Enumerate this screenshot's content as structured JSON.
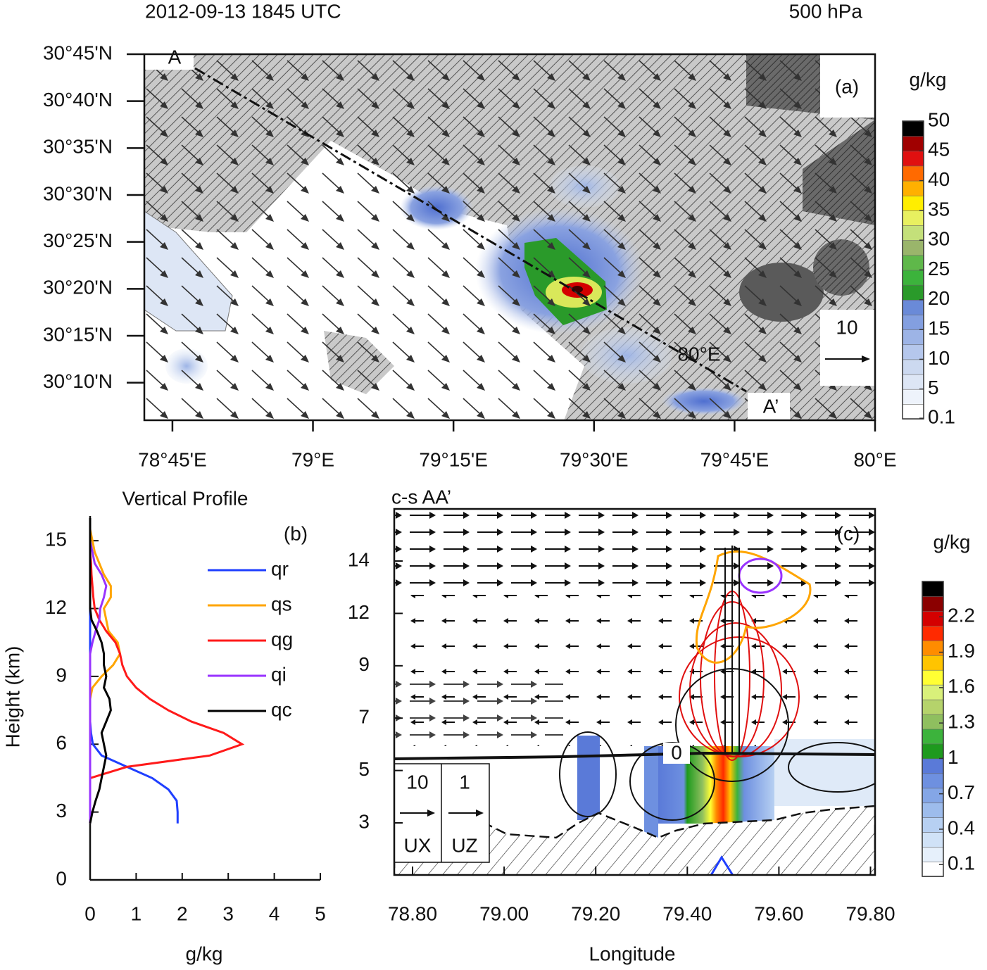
{
  "chart_data": [
    {
      "type": "map",
      "title": "2012-09-13 1845 UTC",
      "subtitle": "500 hPa",
      "panel_label": "(a)",
      "xlim": [
        78.7,
        80
      ],
      "xticks": [
        {
          "value": 78.75,
          "label": "78°45'E"
        },
        {
          "value": 79,
          "label": "79°E"
        },
        {
          "value": 79.25,
          "label": "79°15'E"
        },
        {
          "value": 79.5,
          "label": "79°30'E"
        },
        {
          "value": 79.75,
          "label": "79°45'E"
        },
        {
          "value": 80,
          "label": "80°E"
        }
      ],
      "ylim": [
        30.1,
        30.75
      ],
      "yticks": [
        {
          "value": 30.16667,
          "label": "30°10'N"
        },
        {
          "value": 30.25,
          "label": "30°15'N"
        },
        {
          "value": 30.33333,
          "label": "30°20'N"
        },
        {
          "value": 30.41667,
          "label": "30°25'N"
        },
        {
          "value": 30.5,
          "label": "30°30'N"
        },
        {
          "value": 30.58333,
          "label": "30°35'N"
        },
        {
          "value": 30.66667,
          "label": "30°40'N"
        },
        {
          "value": 30.75,
          "label": "30°45'N"
        }
      ],
      "annotations": [
        "A",
        "A’",
        "80°E"
      ],
      "reference_vector": 10,
      "colorbar": {
        "label": "g/kg",
        "lim": [
          0,
          50
        ],
        "ticks": [
          0.1,
          5,
          10,
          15,
          20,
          25,
          30,
          35,
          40,
          45,
          50
        ],
        "colors": [
          "#ffffff",
          "#eef3fb",
          "#dde6f5",
          "#ccd9f0",
          "#b5c7ec",
          "#9db4e6",
          "#839fe0",
          "#6a8ad8",
          "#2a9a2a",
          "#3cb33c",
          "#5fb84a",
          "#9ab56b",
          "#c4e07a",
          "#e8f060",
          "#ffee00",
          "#ffb000",
          "#ff6a00",
          "#e01010",
          "#a00000",
          "#000000"
        ]
      }
    },
    {
      "type": "line",
      "title": "Vertical Profile",
      "panel_label": "(b)",
      "x_label": "g/kg",
      "y_label": "Height (km)",
      "xlim": [
        0,
        5
      ],
      "xticks": [
        0,
        1,
        2,
        3,
        4,
        5
      ],
      "ylim": [
        0,
        16
      ],
      "yticks": [
        0,
        3,
        6,
        9,
        12,
        15
      ],
      "y": [
        2.5,
        3,
        3.5,
        4,
        4.5,
        5,
        5.5,
        6,
        6.5,
        7,
        7.5,
        8,
        8.5,
        9,
        9.5,
        10,
        10.5,
        11,
        11.5,
        12,
        12.5,
        13,
        13.5,
        14,
        14.5,
        15,
        15.5,
        16
      ],
      "series": [
        {
          "name": "qr",
          "color": "#1f3fff",
          "values": [
            1.9,
            1.9,
            1.88,
            1.7,
            1.35,
            0.8,
            0.25,
            0.06,
            0.02,
            0,
            0,
            0,
            0,
            0,
            0,
            0,
            0,
            0,
            0,
            0,
            0,
            0,
            0,
            0,
            0,
            0,
            0,
            0
          ]
        },
        {
          "name": "qs",
          "color": "#ffa500",
          "values": [
            0,
            0,
            0,
            0,
            0,
            0,
            0,
            0,
            0,
            0,
            0,
            0,
            0.05,
            0.25,
            0.5,
            0.65,
            0.6,
            0.4,
            0.35,
            0.3,
            0.45,
            0.45,
            0.3,
            0.2,
            0.1,
            0.05,
            0,
            0
          ]
        },
        {
          "name": "qg",
          "color": "#ff1a1a",
          "values": [
            null,
            null,
            null,
            null,
            0,
            0.8,
            2.6,
            3.3,
            2.9,
            2.2,
            1.7,
            1.3,
            1.0,
            0.8,
            0.7,
            0.65,
            0.55,
            0.35,
            0.2,
            0.1,
            0.07,
            0.05,
            0.03,
            0.02,
            0,
            0,
            null,
            null
          ]
        },
        {
          "name": "qi",
          "color": "#9933ff",
          "values": [
            0,
            0,
            0,
            0,
            0,
            0,
            0,
            0,
            0,
            0,
            0,
            0,
            0,
            0,
            0,
            0,
            0.05,
            0.12,
            0.2,
            0.22,
            0.3,
            0.35,
            0.25,
            0.1,
            0.05,
            0,
            0,
            0
          ]
        },
        {
          "name": "qc",
          "color": "#000000",
          "values": [
            0,
            0.05,
            0.12,
            0.2,
            0.25,
            0.3,
            0.35,
            0.3,
            0.25,
            0.35,
            0.45,
            0.42,
            0.3,
            0.35,
            0.3,
            0.3,
            0.25,
            0.15,
            0.03,
            0,
            0,
            0,
            0,
            0,
            0,
            0,
            0,
            0
          ]
        }
      ]
    },
    {
      "type": "cross-section",
      "title": "c-s AA’",
      "panel_label": "(c)",
      "x_label": "Longitude",
      "xlim": [
        78.76,
        79.81
      ],
      "xticks": [
        {
          "value": 78.8,
          "label": "78.80"
        },
        {
          "value": 79,
          "label": "79.00"
        },
        {
          "value": 79.2,
          "label": "79.20"
        },
        {
          "value": 79.4,
          "label": "79.40"
        },
        {
          "value": 79.6,
          "label": "79.60"
        },
        {
          "value": 79.8,
          "label": "79.80"
        }
      ],
      "ylim": [
        1,
        16
      ],
      "yticks": [
        3,
        5,
        7,
        9,
        12,
        14
      ],
      "annotations": [
        "0"
      ],
      "reference_vectors": [
        {
          "value": 10,
          "name": "UX"
        },
        {
          "value": 1,
          "name": "UZ"
        }
      ],
      "colorbar": {
        "label": "g/kg",
        "lim": [
          0,
          2.5
        ],
        "ticks": [
          0.1,
          0.4,
          0.7,
          1,
          1.3,
          1.6,
          1.9,
          2.2
        ],
        "colors": [
          "#ffffff",
          "#e6f0fb",
          "#d0e2f7",
          "#b7d0f2",
          "#9dbcec",
          "#84a6e6",
          "#6e90e0",
          "#5a7ad8",
          "#1e9a1e",
          "#3cb33c",
          "#8fbf5f",
          "#b5d36b",
          "#d9f07a",
          "#ffff33",
          "#ffc400",
          "#ff8c00",
          "#ff2a00",
          "#d40000",
          "#8b0000",
          "#000000"
        ]
      }
    }
  ]
}
